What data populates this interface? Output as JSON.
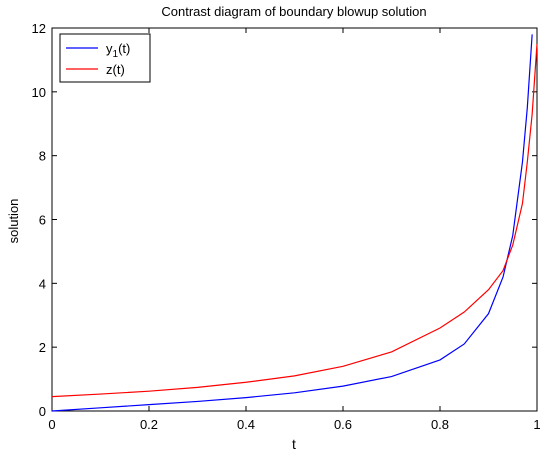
{
  "chart_data": {
    "type": "line",
    "title": "Contrast diagram of boundary blowup solution",
    "xlabel": "t",
    "ylabel": "solution",
    "xlim": [
      0,
      1
    ],
    "ylim": [
      0,
      12
    ],
    "x_ticks": [
      "0",
      "0.2",
      "0.4",
      "0.6",
      "0.8",
      "1"
    ],
    "y_ticks": [
      "0",
      "2",
      "4",
      "6",
      "8",
      "10",
      "12"
    ],
    "grid": false,
    "legend_position": "top-left",
    "series": [
      {
        "name": "y",
        "name_subscript": "1",
        "name_suffix": "(t)",
        "color": "#0000ff",
        "x": [
          0,
          0.1,
          0.2,
          0.3,
          0.4,
          0.5,
          0.6,
          0.7,
          0.8,
          0.85,
          0.9,
          0.93,
          0.95,
          0.97,
          0.98,
          0.99
        ],
        "y": [
          0.0,
          0.1,
          0.2,
          0.3,
          0.42,
          0.57,
          0.78,
          1.08,
          1.6,
          2.1,
          3.05,
          4.2,
          5.5,
          7.8,
          9.5,
          11.8
        ]
      },
      {
        "name": "z(t)",
        "color": "#ff0000",
        "x": [
          0,
          0.1,
          0.2,
          0.3,
          0.4,
          0.5,
          0.6,
          0.7,
          0.8,
          0.85,
          0.9,
          0.93,
          0.95,
          0.97,
          0.98,
          0.99,
          1.0
        ],
        "y": [
          0.45,
          0.53,
          0.62,
          0.74,
          0.9,
          1.1,
          1.4,
          1.85,
          2.6,
          3.1,
          3.8,
          4.4,
          5.2,
          6.5,
          7.8,
          9.3,
          11.5
        ]
      }
    ]
  }
}
